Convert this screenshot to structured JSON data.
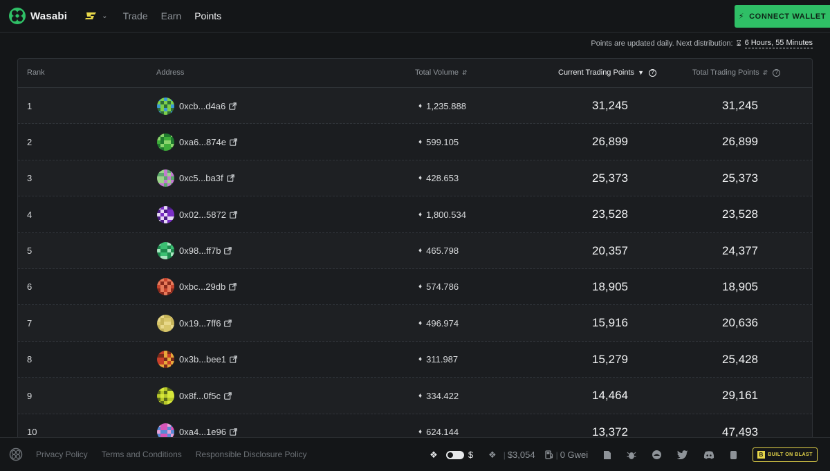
{
  "app": {
    "name": "Wasabi",
    "brand_color": "#2fbf66"
  },
  "nav": [
    {
      "label": "Trade",
      "active": false
    },
    {
      "label": "Earn",
      "active": false
    },
    {
      "label": "Points",
      "active": true
    }
  ],
  "chain_selector": {
    "icon": "blast-chain-icon"
  },
  "connect_button": {
    "label": "CONNECT WALLET",
    "icon": "bolt-icon"
  },
  "notice": {
    "text": "Points are updated daily. Next distribution:",
    "timer": "6 Hours, 55 Minutes"
  },
  "table": {
    "columns": {
      "rank": "Rank",
      "address": "Address",
      "volume": "Total Volume",
      "current": "Current Trading Points",
      "total": "Total Trading Points"
    },
    "sorted_by": "current",
    "rows": [
      {
        "rank": "1",
        "address": "0xcb...d4a6",
        "volume": "1,235.888",
        "current": "31,245",
        "total": "31,245",
        "avatar_colors": [
          "#3a9ad6",
          "#7ccf4a",
          "#2f6e3a"
        ]
      },
      {
        "rank": "2",
        "address": "0xa6...874e",
        "volume": "599.105",
        "current": "26,899",
        "total": "26,899",
        "avatar_colors": [
          "#3fae3a",
          "#1f7a2e",
          "#8bd46c"
        ]
      },
      {
        "rank": "3",
        "address": "0xc5...ba3f",
        "volume": "428.653",
        "current": "25,373",
        "total": "25,373",
        "avatar_colors": [
          "#9bd38a",
          "#c27ad0",
          "#5aa86c"
        ]
      },
      {
        "rank": "4",
        "address": "0x02...5872",
        "volume": "1,800.534",
        "current": "23,528",
        "total": "23,528",
        "avatar_colors": [
          "#7a2fc6",
          "#e6d8f6",
          "#4b1c86"
        ]
      },
      {
        "rank": "5",
        "address": "0x98...ff7b",
        "volume": "465.798",
        "current": "20,357",
        "total": "24,377",
        "avatar_colors": [
          "#3bbf72",
          "#1f8a4e",
          "#a8e6c0"
        ]
      },
      {
        "rank": "6",
        "address": "0xbc...29db",
        "volume": "574.786",
        "current": "18,905",
        "total": "18,905",
        "avatar_colors": [
          "#c9452e",
          "#e67a5a",
          "#8a2a1c"
        ]
      },
      {
        "rank": "7",
        "address": "0x19...7ff6",
        "volume": "496.974",
        "current": "15,916",
        "total": "20,636",
        "avatar_colors": [
          "#d8c66a",
          "#c7b55a",
          "#e8d88a"
        ]
      },
      {
        "rank": "8",
        "address": "0x3b...bee1",
        "volume": "311.987",
        "current": "15,279",
        "total": "25,428",
        "avatar_colors": [
          "#c8402a",
          "#e8a83a",
          "#7a2a1a"
        ]
      },
      {
        "rank": "9",
        "address": "0x8f...0f5c",
        "volume": "334.422",
        "current": "14,464",
        "total": "29,161",
        "avatar_colors": [
          "#d6e63a",
          "#b8c82a",
          "#5a6a1a"
        ]
      },
      {
        "rank": "10",
        "address": "0xa4...1e96",
        "volume": "624.144",
        "current": "13,372",
        "total": "47,493",
        "avatar_colors": [
          "#d656b8",
          "#5a8ad6",
          "#e8a0d8"
        ]
      }
    ]
  },
  "footer": {
    "links": [
      "Privacy Policy",
      "Terms and Conditions",
      "Responsible Disclosure Policy"
    ],
    "eth_price": "$3,054",
    "gas": "0 Gwei",
    "currency_symbol": "$",
    "badge": "BUILT ON BLAST",
    "icons": [
      "docs-icon",
      "bug-icon",
      "medium-icon",
      "twitter-icon",
      "discord-icon",
      "telegram-icon"
    ]
  }
}
